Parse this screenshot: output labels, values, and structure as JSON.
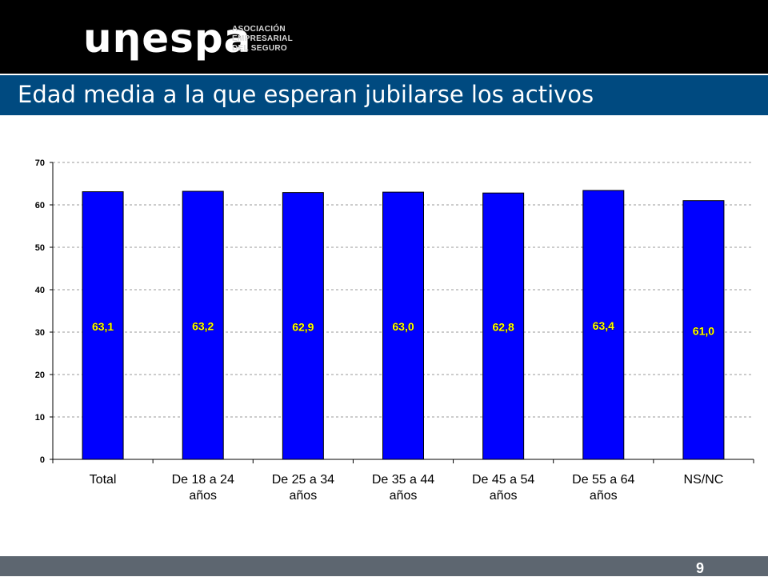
{
  "header": {
    "logo_word": "uηespa",
    "logo_lines": [
      "ASOCIACIÓN",
      "EMPRESARIAL",
      "DEL SEGURO"
    ]
  },
  "slide": {
    "title": "Edad media a la que esperan jubilarse los activos",
    "page_number": "9"
  },
  "colors": {
    "bar_fill": "#0000ff",
    "label_text": "#ffff00",
    "title_bar": "#004a80",
    "footer": "#5d6670"
  },
  "chart_data": {
    "type": "bar",
    "title": "",
    "xlabel": "",
    "ylabel": "",
    "categories": [
      [
        "Total"
      ],
      [
        "De 18 a 24",
        "años"
      ],
      [
        "De 25 a 34",
        "años"
      ],
      [
        "De 35 a 44",
        "años"
      ],
      [
        "De 45 a 54",
        "años"
      ],
      [
        "De 55 a 64",
        "años"
      ],
      [
        "NS/NC"
      ]
    ],
    "values": [
      63.1,
      63.2,
      62.9,
      63.0,
      62.8,
      63.4,
      61.0
    ],
    "value_labels": [
      "63,1",
      "63,2",
      "62,9",
      "63,0",
      "62,8",
      "63,4",
      "61,0"
    ],
    "ylim": [
      0,
      70
    ],
    "yticks": [
      0,
      10,
      20,
      30,
      40,
      50,
      60,
      70
    ],
    "grid": "horizontal dashed",
    "legend": "none"
  }
}
